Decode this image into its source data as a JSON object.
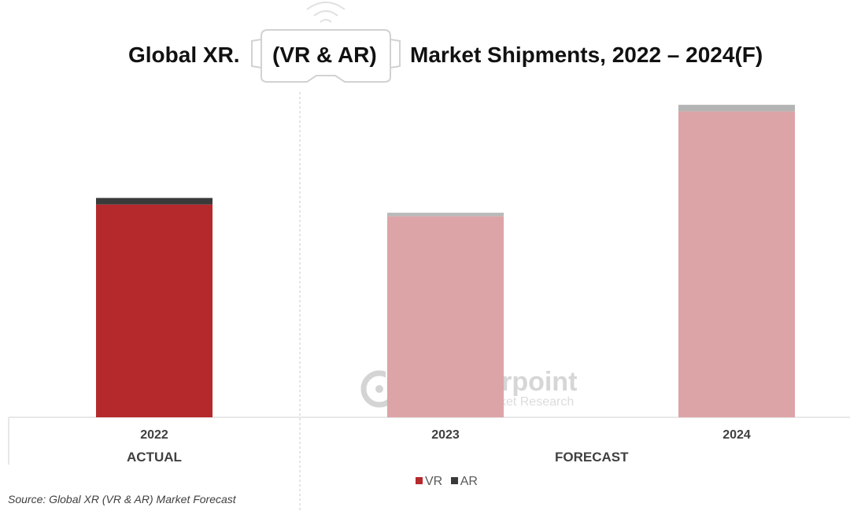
{
  "title": {
    "left": "Global XR.",
    "middle": "(VR & AR)",
    "right": "Market Shipments, 2022 – 2024(F)"
  },
  "chart_data": {
    "type": "bar",
    "stacked": true,
    "categories": [
      "2022",
      "2023",
      "2024"
    ],
    "series": [
      {
        "name": "VR",
        "values": [
          72,
          68,
          103.5
        ]
      },
      {
        "name": "AR",
        "values": [
          2.2,
          1.2,
          2.2
        ]
      }
    ],
    "ylim": [
      0,
      110
    ],
    "groups": [
      {
        "label": "ACTUAL",
        "categories": [
          "2022"
        ]
      },
      {
        "label": "FORECAST",
        "categories": [
          "2023",
          "2024"
        ]
      }
    ],
    "grid": false,
    "yaxis_visible": false,
    "legend_position": "bottom-center"
  },
  "colors": {
    "vr_actual": "#b5292d",
    "ar_actual": "#3a3a3a",
    "vr_forecast": "#dca4a7",
    "ar_forecast_2023": "#b9b9b9",
    "ar_forecast_2024": "#b4b4b4",
    "legend_vr": "#b5292d",
    "legend_ar": "#3a3a3a"
  },
  "watermark": {
    "name": "Counterpoint",
    "subtitle": "Technology Market Research"
  },
  "legend": {
    "vr": "VR",
    "ar": "AR"
  },
  "source": "Source: Global XR (VR & AR) Market Forecast"
}
